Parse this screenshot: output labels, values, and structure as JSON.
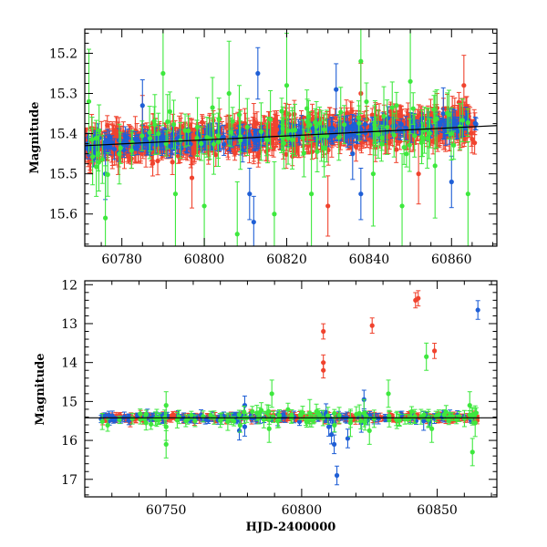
{
  "colors": {
    "blue": "#1f5fd6",
    "green": "#3ee83e",
    "red": "#f0432e",
    "ref_line": "#000000"
  },
  "chart_data": [
    {
      "type": "scatter",
      "xlabel": "",
      "ylabel": "Magnitude",
      "xlim": [
        60771,
        60871
      ],
      "ylim": [
        15.68,
        15.14
      ],
      "y_inverted": true,
      "xticks": [
        60780,
        60800,
        60820,
        60840,
        60860
      ],
      "xtick_labels": [
        "60780",
        "60800",
        "60820",
        "60840",
        "60860"
      ],
      "yticks": [
        15.2,
        15.3,
        15.4,
        15.5,
        15.6
      ],
      "ytick_labels": [
        "15.2",
        "15.3",
        "15.4",
        "15.5",
        "15.6"
      ],
      "reference_line": {
        "from": [
          60771,
          15.43
        ],
        "to": [
          60871,
          15.38
        ]
      },
      "trend": {
        "x0": 60771,
        "x1": 60866,
        "y0": 15.43,
        "y1": 15.375
      },
      "series": [
        {
          "color": "red",
          "density": "dense",
          "scatter": 0.02,
          "err": 0.025,
          "points": [
            [
              60785,
              15.38
            ],
            [
              60797,
              15.51
            ],
            [
              60812,
              15.4
            ],
            [
              60830,
              15.58
            ],
            [
              60838,
              15.3
            ],
            [
              60852,
              15.5
            ],
            [
              60863,
              15.28
            ]
          ]
        },
        {
          "color": "blue",
          "density": "medium",
          "scatter": 0.01,
          "err": 0.02,
          "points": [
            [
              60776,
              15.5
            ],
            [
              60785,
              15.33
            ],
            [
              60811,
              15.55
            ],
            [
              60812,
              15.62
            ],
            [
              60813,
              15.25
            ],
            [
              60832,
              15.29
            ],
            [
              60836,
              15.45
            ],
            [
              60838,
              15.55
            ],
            [
              60858,
              15.35
            ],
            [
              60860,
              15.52
            ]
          ]
        },
        {
          "color": "green",
          "density": "sparse",
          "scatter": 0.03,
          "err": 0.05,
          "points": [
            [
              60772,
              15.32
            ],
            [
              60776,
              15.61
            ],
            [
              60790,
              15.25
            ],
            [
              60793,
              15.55
            ],
            [
              60800,
              15.58
            ],
            [
              60806,
              15.3
            ],
            [
              60808,
              15.65
            ],
            [
              60817,
              15.6
            ],
            [
              60820,
              15.28
            ],
            [
              60826,
              15.55
            ],
            [
              60838,
              15.22
            ],
            [
              60841,
              15.5
            ],
            [
              60848,
              15.58
            ],
            [
              60850,
              15.27
            ],
            [
              60856,
              15.48
            ],
            [
              60864,
              15.55
            ]
          ]
        }
      ]
    },
    {
      "type": "scatter",
      "xlabel": "HJD-2400000",
      "ylabel": "Magnitude",
      "xlim": [
        60720,
        60872
      ],
      "ylim": [
        17.45,
        11.9
      ],
      "y_inverted": true,
      "xticks": [
        60750,
        60800,
        60850
      ],
      "xtick_labels": [
        "60750",
        "60800",
        "60850"
      ],
      "yticks": [
        12,
        13,
        14,
        15,
        16,
        17
      ],
      "ytick_labels": [
        "12",
        "13",
        "14",
        "15",
        "16",
        "17"
      ],
      "reference_line": {
        "from": [
          60720,
          15.42
        ],
        "to": [
          60872,
          15.42
        ]
      },
      "trend": {
        "x0": 60726,
        "x1": 60866,
        "y0": 15.42,
        "y1": 15.4
      },
      "series": [
        {
          "color": "red",
          "density": "medium",
          "scatter": 0.04,
          "err": 0.08,
          "points": [
            [
              60808,
              13.2
            ],
            [
              60808,
              14.0
            ],
            [
              60808,
              14.2
            ],
            [
              60826,
              13.05
            ],
            [
              60842,
              12.4
            ],
            [
              60843,
              12.35
            ],
            [
              60849,
              13.7
            ]
          ]
        },
        {
          "color": "blue",
          "density": "sparse",
          "scatter": 0.04,
          "err": 0.1,
          "points": [
            [
              60779,
              15.1
            ],
            [
              60779,
              15.65
            ],
            [
              60777,
              15.75
            ],
            [
              60809,
              15.3
            ],
            [
              60810,
              15.65
            ],
            [
              60811,
              15.85
            ],
            [
              60812,
              16.1
            ],
            [
              60812,
              15.55
            ],
            [
              60813,
              16.9
            ],
            [
              60817,
              15.95
            ],
            [
              60822,
              15.55
            ],
            [
              60823,
              14.95
            ],
            [
              60845,
              15.5
            ],
            [
              60865,
              12.65
            ]
          ]
        },
        {
          "color": "green",
          "density": "sparse",
          "scatter": 0.08,
          "err": 0.15,
          "points": [
            [
              60750,
              15.1
            ],
            [
              60750,
              16.1
            ],
            [
              60750,
              15.65
            ],
            [
              60789,
              14.8
            ],
            [
              60788,
              15.7
            ],
            [
              60803,
              15.3
            ],
            [
              60818,
              15.55
            ],
            [
              60823,
              15.3
            ],
            [
              60825,
              15.75
            ],
            [
              60832,
              14.8
            ],
            [
              60846,
              13.85
            ],
            [
              60848,
              15.7
            ],
            [
              60862,
              15.1
            ],
            [
              60863,
              16.3
            ],
            [
              60864,
              15.55
            ]
          ]
        }
      ]
    }
  ]
}
